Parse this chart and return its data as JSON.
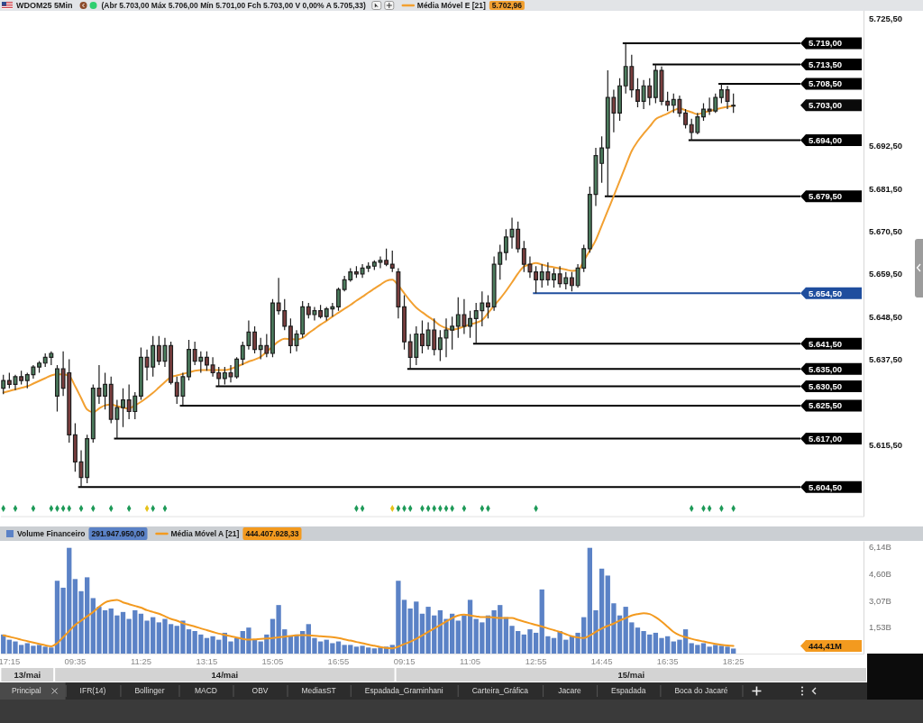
{
  "chart_data": [
    {
      "type": "candlestick",
      "title": "WDOM25 5Min",
      "categories": [
        null,
        null,
        null,
        null,
        null,
        null,
        null,
        null,
        null,
        null,
        null,
        null,
        null,
        null,
        null,
        null,
        null,
        null,
        null,
        null,
        null,
        null,
        null,
        null,
        null,
        null,
        null,
        null,
        null,
        null,
        null,
        null,
        null,
        null,
        null,
        null,
        null,
        null,
        null,
        null,
        null,
        null,
        null,
        null,
        null,
        null,
        null,
        null,
        null,
        null,
        null,
        null,
        null,
        null,
        null,
        null,
        null,
        null,
        null,
        null,
        null,
        null,
        null,
        null,
        null,
        null,
        null,
        null,
        null,
        null,
        null,
        null,
        null,
        null,
        null,
        null,
        null,
        null,
        null,
        null,
        null,
        null,
        null,
        null,
        null,
        null,
        null,
        null,
        null,
        null,
        null,
        null,
        null,
        null,
        null,
        null,
        null,
        null,
        null,
        null,
        null,
        null,
        null,
        null,
        null,
        null,
        null,
        null,
        null,
        null,
        null,
        null,
        null,
        null,
        null,
        null,
        null,
        null,
        null,
        null,
        null,
        null,
        null
      ],
      "ohlc": [
        [
          5630,
          5633.5,
          5628.5,
          5632
        ],
        [
          5632,
          5634,
          5630,
          5631
        ],
        [
          5631,
          5633.5,
          5629.5,
          5633
        ],
        [
          5633,
          5634.5,
          5631,
          5632
        ],
        [
          5632,
          5634,
          5630,
          5633.5
        ],
        [
          5633.5,
          5636,
          5632.5,
          5635.5
        ],
        [
          5635.5,
          5637,
          5634,
          5636.5
        ],
        [
          5636.5,
          5639,
          5635.5,
          5638
        ],
        [
          5638,
          5639.5,
          5636,
          5639
        ],
        [
          5628,
          5636,
          5624,
          5635
        ],
        [
          5635,
          5639.5,
          5628,
          5630
        ],
        [
          5634,
          5637.5,
          5616,
          5618
        ],
        [
          5618,
          5621,
          5608.5,
          5611
        ],
        [
          5611,
          5614,
          5604.5,
          5607
        ],
        [
          5607,
          5618,
          5605.5,
          5617
        ],
        [
          5617,
          5631,
          5616,
          5630
        ],
        [
          5630,
          5636,
          5626,
          5628
        ],
        [
          5628,
          5634,
          5624.5,
          5631
        ],
        [
          5631,
          5633,
          5621,
          5622
        ],
        [
          5622,
          5627,
          5617,
          5625
        ],
        [
          5625,
          5630,
          5620,
          5627
        ],
        [
          5627,
          5631,
          5622,
          5624
        ],
        [
          5624,
          5629,
          5622,
          5628
        ],
        [
          5628,
          5640.5,
          5627,
          5638
        ],
        [
          5638,
          5640,
          5632,
          5635.5
        ],
        [
          5635.5,
          5643.5,
          5633,
          5641
        ],
        [
          5641,
          5643.5,
          5636,
          5637
        ],
        [
          5637,
          5643,
          5635.5,
          5641
        ],
        [
          5641,
          5642,
          5631,
          5631.5
        ],
        [
          5631.5,
          5633,
          5626,
          5628
        ],
        [
          5628,
          5634,
          5625.5,
          5633
        ],
        [
          5633,
          5642.5,
          5632,
          5640
        ],
        [
          5640,
          5642,
          5636,
          5637
        ],
        [
          5637,
          5639.5,
          5634,
          5638
        ],
        [
          5638,
          5639.5,
          5634.5,
          5636
        ],
        [
          5636,
          5638,
          5633,
          5634
        ],
        [
          5634,
          5635.5,
          5630.5,
          5632.5
        ],
        [
          5632.5,
          5635.5,
          5631,
          5634
        ],
        [
          5634,
          5636,
          5631.5,
          5633
        ],
        [
          5633,
          5638,
          5632.5,
          5637.5
        ],
        [
          5637.5,
          5642,
          5636,
          5641
        ],
        [
          5641,
          5647.5,
          5640,
          5644.5
        ],
        [
          5644.5,
          5646,
          5639,
          5640
        ],
        [
          5640,
          5643,
          5637.5,
          5641
        ],
        [
          5641,
          5644,
          5638,
          5639
        ],
        [
          5639,
          5653,
          5638,
          5652
        ],
        [
          5652,
          5658.5,
          5649,
          5650
        ],
        [
          5650,
          5653,
          5645,
          5646
        ],
        [
          5646,
          5648,
          5639,
          5641
        ],
        [
          5641,
          5645,
          5639.5,
          5644
        ],
        [
          5644,
          5652.5,
          5643,
          5651
        ],
        [
          5651,
          5652,
          5648,
          5649
        ],
        [
          5649,
          5651,
          5647.5,
          5650
        ],
        [
          5650,
          5651.5,
          5648,
          5648.5
        ],
        [
          5648.5,
          5651,
          5647.5,
          5650.5
        ],
        [
          5650.5,
          5652,
          5648.5,
          5651
        ],
        [
          5651,
          5656,
          5650,
          5655.5
        ],
        [
          5655.5,
          5659,
          5655,
          5658
        ],
        [
          5658,
          5661,
          5657.5,
          5660
        ],
        [
          5660,
          5661.5,
          5658.5,
          5659.5
        ],
        [
          5659.5,
          5662,
          5658.5,
          5661
        ],
        [
          5661,
          5662.5,
          5660,
          5661.5
        ],
        [
          5661.5,
          5663,
          5660.5,
          5662.5
        ],
        [
          5662.5,
          5664,
          5661,
          5663
        ],
        [
          5663,
          5666,
          5661.5,
          5662
        ],
        [
          5662,
          5665.5,
          5660,
          5661
        ],
        [
          5660,
          5661,
          5648,
          5651
        ],
        [
          5651,
          5654,
          5640,
          5642
        ],
        [
          5642,
          5644,
          5635,
          5638
        ],
        [
          5638,
          5646,
          5636,
          5644
        ],
        [
          5644,
          5647.5,
          5639,
          5641
        ],
        [
          5641,
          5647,
          5640,
          5645
        ],
        [
          5645,
          5648,
          5638.5,
          5640
        ],
        [
          5640,
          5645,
          5637,
          5643
        ],
        [
          5643,
          5648,
          5638,
          5645
        ],
        [
          5645,
          5648.5,
          5640,
          5646
        ],
        [
          5646,
          5653.5,
          5643,
          5649
        ],
        [
          5649,
          5653,
          5644,
          5646
        ],
        [
          5646,
          5650,
          5643,
          5648
        ],
        [
          5648,
          5652,
          5641.5,
          5650
        ],
        [
          5650,
          5655,
          5646,
          5652
        ],
        [
          5652,
          5654,
          5648,
          5651
        ],
        [
          5651,
          5664,
          5650,
          5662
        ],
        [
          5662,
          5667,
          5658,
          5665
        ],
        [
          5665,
          5671,
          5663,
          5669
        ],
        [
          5669,
          5674,
          5666,
          5671
        ],
        [
          5671,
          5673,
          5665,
          5666
        ],
        [
          5666,
          5668,
          5660,
          5662
        ],
        [
          5662,
          5664,
          5658.5,
          5660
        ],
        [
          5660,
          5661.5,
          5654.5,
          5658
        ],
        [
          5658,
          5662,
          5656,
          5660
        ],
        [
          5660,
          5662.5,
          5656.5,
          5658
        ],
        [
          5658,
          5661,
          5656,
          5659.5
        ],
        [
          5659.5,
          5661.5,
          5656,
          5657
        ],
        [
          5657,
          5660,
          5655.5,
          5658.5
        ],
        [
          5658.5,
          5660,
          5655,
          5656.5
        ],
        [
          5656.5,
          5662,
          5656,
          5661
        ],
        [
          5661,
          5667,
          5660,
          5666
        ],
        [
          5666,
          5682,
          5665,
          5680
        ],
        [
          5680,
          5692,
          5677,
          5690
        ],
        [
          5688,
          5695,
          5683,
          5692
        ],
        [
          5692,
          5712,
          5679.5,
          5705
        ],
        [
          5705,
          5707,
          5696,
          5701
        ],
        [
          5701,
          5710,
          5699,
          5708
        ],
        [
          5708,
          5719,
          5706,
          5713
        ],
        [
          5713,
          5716,
          5705,
          5707
        ],
        [
          5707,
          5710,
          5702.5,
          5704
        ],
        [
          5704,
          5709.5,
          5702,
          5708
        ],
        [
          5708,
          5710,
          5703,
          5705
        ],
        [
          5705,
          5713.5,
          5703.5,
          5712
        ],
        [
          5712,
          5713,
          5703,
          5704
        ],
        [
          5704,
          5706.5,
          5701.5,
          5703
        ],
        [
          5703,
          5706,
          5701,
          5704.5
        ],
        [
          5704.5,
          5705.5,
          5700,
          5701
        ],
        [
          5701,
          5702,
          5697,
          5698
        ],
        [
          5698,
          5699.5,
          5694,
          5696
        ],
        [
          5696,
          5701,
          5695.5,
          5700
        ],
        [
          5700,
          5703.5,
          5699,
          5702
        ],
        [
          5702,
          5705,
          5700.5,
          5701.5
        ],
        [
          5701.5,
          5706,
          5701,
          5705
        ],
        [
          5705,
          5708.5,
          5703.5,
          5707
        ],
        [
          5707,
          5708,
          5702,
          5704
        ],
        [
          5703,
          5706,
          5701,
          5703
        ]
      ],
      "series": [
        {
          "type": "line",
          "name": "Média Móvel E [21]",
          "color": "#f2a031",
          "values": [
            5628.9,
            5629.3,
            5629.7,
            5630.1,
            5630.5,
            5631.2,
            5631.9,
            5632.6,
            5633.3,
            5633.6,
            5633.6,
            5633.2,
            5630.5,
            5627.5,
            5624.5,
            5623.8,
            5624.8,
            5625.6,
            5625.8,
            5625.4,
            5625,
            5624.8,
            5625.6,
            5626.5,
            5627.6,
            5628.8,
            5630.2,
            5631.6,
            5632.9,
            5633.3,
            5633.7,
            5634.1,
            5634.5,
            5634.7,
            5634.7,
            5634.7,
            5634.7,
            5634.7,
            5635,
            5635.6,
            5636.2,
            5636.9,
            5637.4,
            5638.1,
            5639.4,
            5640.8,
            5642.1,
            5642.8,
            5642.7,
            5642.6,
            5643,
            5644.2,
            5645.3,
            5646.4,
            5647.4,
            5648.5,
            5649.5,
            5650.5,
            5651.5,
            5652.6,
            5653.6,
            5654.7,
            5655.7,
            5656.7,
            5657.7,
            5658,
            5656.5,
            5654.5,
            5652.5,
            5650.8,
            5649.6,
            5648.5,
            5647.4,
            5646.2,
            5645.5,
            5645.1,
            5645.4,
            5645.9,
            5646.5,
            5646.9,
            5647.6,
            5649.4,
            5651.3,
            5653.1,
            5655.1,
            5657.3,
            5659.6,
            5661.4,
            5661.9,
            5662.3,
            5661.9,
            5661.5,
            5661.2,
            5660.9,
            5660.6,
            5660.3,
            5660.4,
            5662.9,
            5665.5,
            5668.2,
            5672,
            5675.8,
            5679.6,
            5683.5,
            5687.4,
            5691.2,
            5693.7,
            5695.7,
            5697.5,
            5699.4,
            5700.2,
            5700.9,
            5701.7,
            5702.2,
            5701.7,
            5701.2,
            5700.7,
            5701.1,
            5701.5,
            5701.9,
            5702.3,
            5702.6,
            5702.96
          ]
        },
        {
          "type": "scatter",
          "marker": "diamond",
          "color": "#1e9a58",
          "values": [
            5599,
            null,
            5599,
            null,
            null,
            5599,
            null,
            null,
            5599,
            5599,
            5599,
            5599,
            null,
            5599,
            null,
            5599,
            null,
            null,
            5599,
            null,
            null,
            5599,
            null,
            null,
            null,
            5599,
            null,
            5599,
            null,
            null,
            null,
            null,
            null,
            null,
            null,
            null,
            null,
            null,
            null,
            null,
            null,
            null,
            null,
            null,
            null,
            null,
            null,
            null,
            null,
            null,
            null,
            null,
            null,
            null,
            null,
            null,
            null,
            null,
            null,
            5599,
            5599,
            null,
            null,
            null,
            null,
            null,
            5599,
            5599,
            5599,
            null,
            5599,
            5599,
            5599,
            5599,
            5599,
            5599,
            null,
            5599,
            null,
            null,
            5599,
            5599,
            null,
            null,
            null,
            null,
            null,
            null,
            null,
            5599,
            null,
            null,
            null,
            null,
            null,
            null,
            null,
            null,
            null,
            null,
            null,
            null,
            null,
            null,
            null,
            null,
            null,
            null,
            null,
            null,
            null,
            null,
            null,
            null,
            null,
            5599,
            null,
            5599,
            5599,
            null,
            5599,
            null,
            5599
          ]
        },
        {
          "type": "scatter",
          "marker": "diamond",
          "color": "#e6c21a",
          "values": [
            null,
            null,
            null,
            null,
            null,
            null,
            null,
            null,
            null,
            null,
            null,
            null,
            null,
            null,
            null,
            null,
            null,
            null,
            null,
            null,
            null,
            null,
            null,
            null,
            5599,
            null,
            null,
            null,
            null,
            null,
            null,
            null,
            null,
            null,
            null,
            null,
            null,
            null,
            null,
            null,
            null,
            null,
            null,
            null,
            null,
            null,
            null,
            null,
            null,
            null,
            null,
            null,
            null,
            null,
            null,
            null,
            null,
            null,
            null,
            null,
            null,
            null,
            null,
            null,
            null,
            5599,
            null,
            null,
            null,
            null,
            null,
            null,
            null,
            null,
            null,
            null,
            null,
            null,
            null,
            null,
            null,
            null,
            null,
            null,
            null,
            null,
            null,
            null,
            null,
            null,
            null,
            null,
            null,
            null,
            null,
            null,
            null,
            null,
            null,
            null,
            null,
            null,
            null,
            null,
            null,
            null,
            null,
            null,
            null,
            null,
            null,
            null,
            null,
            null,
            null,
            null,
            null,
            null,
            null,
            null,
            null,
            null,
            null
          ]
        }
      ],
      "ylim": [
        5597,
        5727.5
      ],
      "yticks": [
        {
          "value": 5725.5,
          "label": "5.725,50"
        },
        {
          "value": 5692.5,
          "label": "5.692,50"
        },
        {
          "value": 5681.5,
          "label": "5.681,50"
        },
        {
          "value": 5670.5,
          "label": "5.670,50"
        },
        {
          "value": 5659.5,
          "label": "5.659,50"
        },
        {
          "value": 5648.5,
          "label": "5.648,50"
        },
        {
          "value": 5637.5,
          "label": "5.637,50"
        },
        {
          "value": 5615.5,
          "label": "5.615,50"
        }
      ],
      "ref_lines": [
        {
          "axis": "y",
          "value": 5719,
          "label": "5.719,00",
          "color": "#000000"
        },
        {
          "axis": "y",
          "value": 5713.5,
          "label": "5.713,50",
          "color": "#000000"
        },
        {
          "axis": "y",
          "value": 5708.5,
          "label": "5.708,50",
          "color": "#000000"
        },
        {
          "axis": "y",
          "value": 5694,
          "label": "5.694,00",
          "color": "#000000"
        },
        {
          "axis": "y",
          "value": 5679.5,
          "label": "5.679,50",
          "color": "#000000"
        },
        {
          "axis": "y",
          "value": 5654.5,
          "label": "5.654,50",
          "color": "#1f4e9e"
        },
        {
          "axis": "y",
          "value": 5641.5,
          "label": "5.641,50",
          "color": "#000000"
        },
        {
          "axis": "y",
          "value": 5635,
          "label": "5.635,00",
          "color": "#000000"
        },
        {
          "axis": "y",
          "value": 5630.5,
          "label": "5.630,50",
          "color": "#000000"
        },
        {
          "axis": "y",
          "value": 5625.5,
          "label": "5.625,50",
          "color": "#000000"
        },
        {
          "axis": "y",
          "value": 5617,
          "label": "5.617,00",
          "color": "#000000"
        },
        {
          "axis": "y",
          "value": 5604.5,
          "label": "5.604,50",
          "color": "#000000"
        }
      ],
      "annotations": [
        "(Abr 5.703,00 Máx 5.706,00 Mín 5.701,00 Fch 5.703,00 V 0,00% A 5.705,33)",
        "5.702,96",
        "5.703,00"
      ],
      "legend": "top right",
      "tick_labels": "y"
    },
    {
      "type": "bar",
      "categories": [
        null,
        "17:15",
        null,
        null,
        null,
        null,
        null,
        null,
        null,
        null,
        null,
        null,
        "09:35",
        null,
        null,
        null,
        null,
        null,
        null,
        null,
        null,
        null,
        null,
        "11:25",
        null,
        null,
        null,
        null,
        null,
        null,
        null,
        null,
        null,
        null,
        "13:15",
        null,
        null,
        null,
        null,
        null,
        null,
        null,
        null,
        null,
        null,
        "15:05",
        null,
        null,
        null,
        null,
        null,
        null,
        null,
        null,
        null,
        null,
        "16:55",
        null,
        null,
        null,
        null,
        null,
        null,
        null,
        null,
        null,
        null,
        "09:15",
        null,
        null,
        null,
        null,
        null,
        null,
        null,
        null,
        null,
        null,
        "11:05",
        null,
        null,
        null,
        null,
        null,
        null,
        null,
        null,
        null,
        null,
        "12:55",
        null,
        null,
        null,
        null,
        null,
        null,
        null,
        null,
        null,
        null,
        "14:45",
        null,
        null,
        null,
        null,
        null,
        null,
        null,
        null,
        null,
        null,
        "16:35",
        null,
        null,
        null,
        null,
        null,
        null,
        null,
        null,
        null,
        null,
        "18:25"
      ],
      "series": [
        {
          "name": "Volume Financeiro",
          "color": "#5b82c6",
          "values": [
            1.1,
            0.8,
            0.7,
            0.5,
            0.6,
            0.45,
            0.5,
            0.4,
            0.35,
            4.2,
            3.8,
            6.1,
            4.3,
            3.6,
            4.4,
            3.2,
            2.7,
            2.5,
            2.6,
            2.2,
            2.4,
            2,
            2.5,
            2.3,
            1.9,
            2.1,
            1.8,
            2,
            1.7,
            1.6,
            1.9,
            1.4,
            1.3,
            1.1,
            0.9,
            1,
            0.8,
            1.2,
            0.7,
            0.9,
            1.3,
            1.5,
            0.8,
            0.7,
            1.1,
            2,
            2.8,
            1.4,
            1,
            1.1,
            1.3,
            1.7,
            0.9,
            0.7,
            0.8,
            0.6,
            0.7,
            0.5,
            0.5,
            0.4,
            0.45,
            0.35,
            0.3,
            0.35,
            0.4,
            0.5,
            4.2,
            3.1,
            2.6,
            3,
            2.3,
            2.7,
            2.2,
            2.5,
            2,
            2.3,
            1.9,
            2.2,
            3.1,
            2,
            1.8,
            2.2,
            2.5,
            2.8,
            2.1,
            1.6,
            1.3,
            1.1,
            1.4,
            1.2,
            3.7,
            1,
            0.9,
            1.3,
            0.8,
            1,
            1.2,
            2.1,
            6.1,
            2.5,
            4.9,
            4.5,
            2.9,
            2.2,
            2.7,
            1.8,
            1.5,
            1.3,
            1.1,
            1.2,
            0.9,
            1,
            0.7,
            0.8,
            1.4,
            0.6,
            0.5,
            0.6,
            0.4,
            0.5,
            0.45,
            0.4,
            0.29
          ]
        },
        {
          "type": "line",
          "name": "Média Móvel A [21]",
          "color": "#f39a1f",
          "values": [
            1.05,
            0.97,
            0.89,
            0.8,
            0.72,
            0.64,
            0.56,
            0.48,
            0.42,
            0.6,
            0.95,
            1.3,
            1.65,
            1.9,
            2.15,
            2.4,
            2.7,
            2.95,
            3.05,
            3.1,
            2.95,
            2.85,
            2.75,
            2.65,
            2.5,
            2.4,
            2.3,
            2.15,
            2,
            1.9,
            1.75,
            1.65,
            1.56,
            1.45,
            1.35,
            1.25,
            1.15,
            1.08,
            1,
            0.92,
            0.85,
            0.8,
            0.82,
            0.85,
            0.87,
            0.9,
            0.93,
            0.98,
            1.02,
            1.05,
            1.06,
            1.05,
            1.03,
            1,
            0.98,
            0.95,
            0.9,
            0.82,
            0.75,
            0.67,
            0.6,
            0.52,
            0.45,
            0.38,
            0.32,
            0.3,
            0.4,
            0.55,
            0.68,
            0.85,
            1.05,
            1.25,
            1.45,
            1.65,
            1.85,
            2.05,
            2.2,
            2.25,
            2.2,
            2.15,
            2.1,
            2.1,
            2.08,
            2.06,
            2.05,
            2.05,
            1.95,
            1.85,
            1.75,
            1.65,
            1.56,
            1.45,
            1.35,
            1.25,
            1.12,
            1,
            0.93,
            0.9,
            1.05,
            1.25,
            1.45,
            1.6,
            1.73,
            1.9,
            2.05,
            2.2,
            2.28,
            2.33,
            2.28,
            2.1,
            1.85,
            1.55,
            1.25,
            1.06,
            0.95,
            0.85,
            0.77,
            0.7,
            0.62,
            0.56,
            0.51,
            0.47,
            0.444
          ]
        }
      ],
      "ylim": [
        0,
        6.5
      ],
      "yticks": [
        {
          "value": 6.14,
          "label": "6,14B"
        },
        {
          "value": 4.6,
          "label": "4,60B"
        },
        {
          "value": 3.07,
          "label": "3,07B"
        },
        {
          "value": 1.53,
          "label": "1,53B"
        }
      ],
      "annotations": [
        "291.947.950,00",
        "444.407.928,33",
        "444,41M",
        "13/mai",
        "14/mai",
        "15/mai",
        "Principal",
        "IFR(14)",
        "Bollinger",
        "MACD",
        "OBV",
        "MediasST",
        "Espadada_Graminhani",
        "Carteira_Gráfica",
        "Jacare",
        "Espadada",
        "Boca do Jacaré"
      ],
      "legend": "top left"
    }
  ]
}
